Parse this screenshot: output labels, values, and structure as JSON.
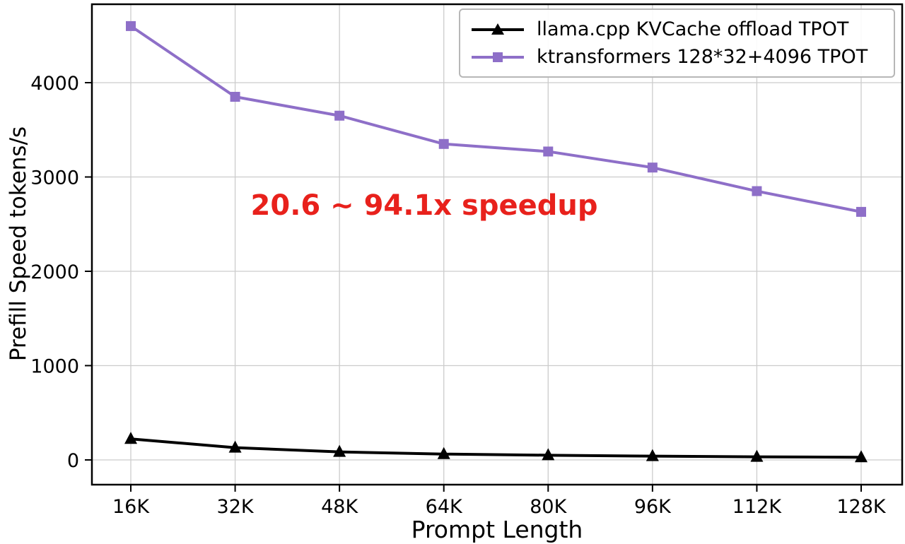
{
  "chart_data": {
    "type": "line",
    "categories": [
      "16K",
      "32K",
      "48K",
      "64K",
      "80K",
      "96K",
      "112K",
      "128K"
    ],
    "series": [
      {
        "name": "llama.cpp KVCache offload TPOT",
        "color": "#000000",
        "marker": "triangle",
        "values": [
          223,
          130,
          85,
          62,
          50,
          40,
          33,
          28
        ]
      },
      {
        "name": "ktransformers 128*32+4096 TPOT",
        "color": "#8e6fc8",
        "marker": "square",
        "values": [
          4600,
          3850,
          3650,
          3350,
          3270,
          3100,
          2850,
          2630
        ]
      }
    ],
    "title": "",
    "xlabel": "Prompt Length",
    "ylabel": "Prefill Speed tokens/s",
    "yticks": [
      0,
      1000,
      2000,
      3000,
      4000
    ],
    "ylim": [
      -250,
      4850
    ],
    "grid": true,
    "grid_color": "#cccccc",
    "legend_position": "upper right",
    "annotation": {
      "text": "20.6 ~ 94.1x speedup",
      "color": "#e8211c"
    }
  }
}
